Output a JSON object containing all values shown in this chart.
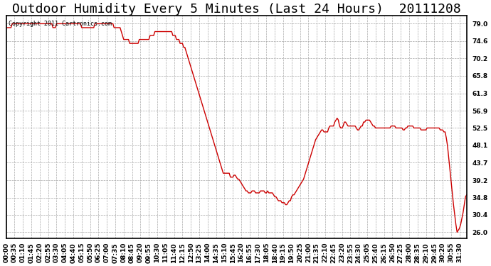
{
  "title": "Outdoor Humidity Every 5 Minutes (Last 24 Hours)  20111208",
  "copyright_text": "Copyright 2011 Cartronics.com",
  "line_color": "#cc0000",
  "bg_color": "#ffffff",
  "plot_bg_color": "#ffffff",
  "grid_color": "#aaaaaa",
  "grid_style": "--",
  "yticks": [
    26.0,
    30.4,
    34.8,
    39.2,
    43.7,
    48.1,
    52.5,
    56.9,
    61.3,
    65.8,
    70.2,
    74.6,
    79.0
  ],
  "ylim": [
    24.5,
    81.0
  ],
  "title_fontsize": 13,
  "tick_fontsize": 6.5,
  "xtick_step": 7,
  "humidity_data": [
    78.0,
    78.0,
    78.0,
    78.0,
    78.0,
    79.0,
    79.0,
    79.0,
    79.0,
    79.0,
    79.0,
    79.0,
    79.0,
    79.0,
    79.0,
    79.0,
    79.0,
    79.0,
    79.0,
    79.0,
    79.0,
    79.0,
    79.0,
    79.0,
    79.0,
    79.0,
    79.0,
    79.0,
    79.0,
    79.0,
    79.0,
    79.0,
    79.0,
    79.0,
    79.0,
    79.0,
    79.0,
    79.0,
    79.0,
    78.0,
    78.0,
    78.0,
    79.0,
    79.0,
    79.0,
    79.0,
    79.0,
    79.0,
    79.0,
    79.0,
    79.0,
    79.0,
    79.0,
    79.0,
    79.0,
    79.0,
    79.0,
    79.0,
    79.0,
    79.0,
    79.0,
    79.0,
    79.0,
    78.0,
    78.0,
    78.0,
    78.0,
    78.0,
    78.0,
    78.0,
    78.0,
    78.0,
    78.0,
    78.0,
    79.0,
    79.0,
    79.0,
    79.0,
    79.0,
    79.0,
    79.0,
    79.0,
    79.0,
    79.0,
    79.0,
    79.0,
    79.0,
    79.0,
    79.0,
    79.0,
    78.0,
    78.0,
    78.0,
    78.0,
    78.0,
    78.0,
    77.0,
    76.0,
    75.0,
    75.0,
    75.0,
    75.0,
    75.0,
    74.0,
    74.0,
    74.0,
    74.0,
    74.0,
    74.0,
    74.0,
    74.0,
    75.0,
    75.0,
    75.0,
    75.0,
    75.0,
    75.0,
    75.0,
    75.0,
    75.0,
    76.0,
    76.0,
    76.0,
    76.0,
    77.0,
    77.0,
    77.0,
    77.0,
    77.0,
    77.0,
    77.0,
    77.0,
    77.0,
    77.0,
    77.0,
    77.0,
    77.0,
    77.0,
    77.0,
    76.0,
    76.0,
    76.0,
    75.0,
    75.0,
    75.0,
    74.0,
    74.0,
    74.0,
    73.0,
    73.0,
    72.0,
    71.0,
    70.0,
    69.0,
    68.0,
    67.0,
    66.0,
    65.0,
    64.0,
    63.0,
    62.0,
    61.0,
    60.0,
    59.0,
    58.0,
    57.0,
    56.0,
    55.0,
    54.0,
    53.0,
    52.0,
    51.0,
    50.0,
    49.0,
    48.0,
    47.0,
    46.0,
    45.0,
    44.0,
    43.0,
    42.0,
    41.0,
    41.0,
    41.0,
    41.0,
    41.0,
    41.0,
    40.0,
    40.0,
    40.0,
    40.5,
    40.5,
    40.0,
    39.5,
    39.5,
    39.0,
    38.5,
    38.0,
    37.5,
    37.0,
    36.5,
    36.5,
    36.0,
    36.0,
    36.0,
    36.5,
    36.5,
    36.5,
    36.0,
    36.0,
    36.0,
    36.0,
    36.5,
    36.5,
    36.5,
    36.5,
    36.0,
    36.0,
    36.5,
    36.0,
    36.0,
    36.0,
    36.0,
    35.5,
    35.0,
    35.0,
    34.5,
    34.0,
    34.0,
    34.0,
    33.5,
    33.5,
    33.5,
    33.0,
    33.0,
    33.5,
    34.0,
    34.0,
    35.0,
    35.5,
    35.5,
    36.0,
    36.5,
    37.0,
    37.5,
    38.0,
    38.5,
    39.0,
    39.5,
    40.5,
    41.5,
    42.5,
    43.5,
    44.5,
    45.5,
    46.5,
    47.5,
    48.5,
    49.5,
    50.0,
    50.5,
    51.0,
    51.5,
    52.0,
    52.0,
    51.5,
    51.5,
    51.5,
    51.5,
    52.5,
    53.0,
    53.0,
    53.0,
    53.0,
    54.0,
    54.5,
    55.0,
    54.5,
    53.0,
    52.5,
    52.5,
    53.0,
    54.0,
    54.0,
    53.5,
    53.0,
    53.0,
    53.0,
    53.0,
    53.0,
    53.0,
    53.0,
    52.5,
    52.0,
    52.0,
    52.5,
    53.0,
    53.0,
    54.0,
    54.0,
    54.5,
    54.5,
    54.5,
    54.5,
    54.0,
    53.5,
    53.0,
    53.0,
    52.5,
    52.5,
    52.5,
    52.5,
    52.5,
    52.5,
    52.5,
    52.5,
    52.5,
    52.5,
    52.5,
    52.5,
    52.5,
    53.0,
    53.0,
    53.0,
    53.0,
    52.5,
    52.5,
    52.5,
    52.5,
    52.5,
    52.5,
    52.0,
    52.0,
    52.5,
    52.5,
    53.0,
    53.0,
    53.0,
    53.0,
    53.0,
    52.5,
    52.5,
    52.5,
    52.5,
    52.5,
    52.5,
    52.0,
    52.0,
    52.0,
    52.0,
    52.0,
    52.5,
    52.5,
    52.5,
    52.5,
    52.5,
    52.5,
    52.5,
    52.5,
    52.5,
    52.5,
    52.5,
    52.0,
    52.0,
    52.0,
    51.5,
    51.5,
    50.0,
    48.0,
    45.0,
    42.0,
    39.0,
    36.0,
    33.0,
    30.5,
    28.0,
    26.0,
    26.5,
    27.0,
    28.0,
    29.5,
    31.0,
    33.0,
    35.0,
    35.5
  ]
}
